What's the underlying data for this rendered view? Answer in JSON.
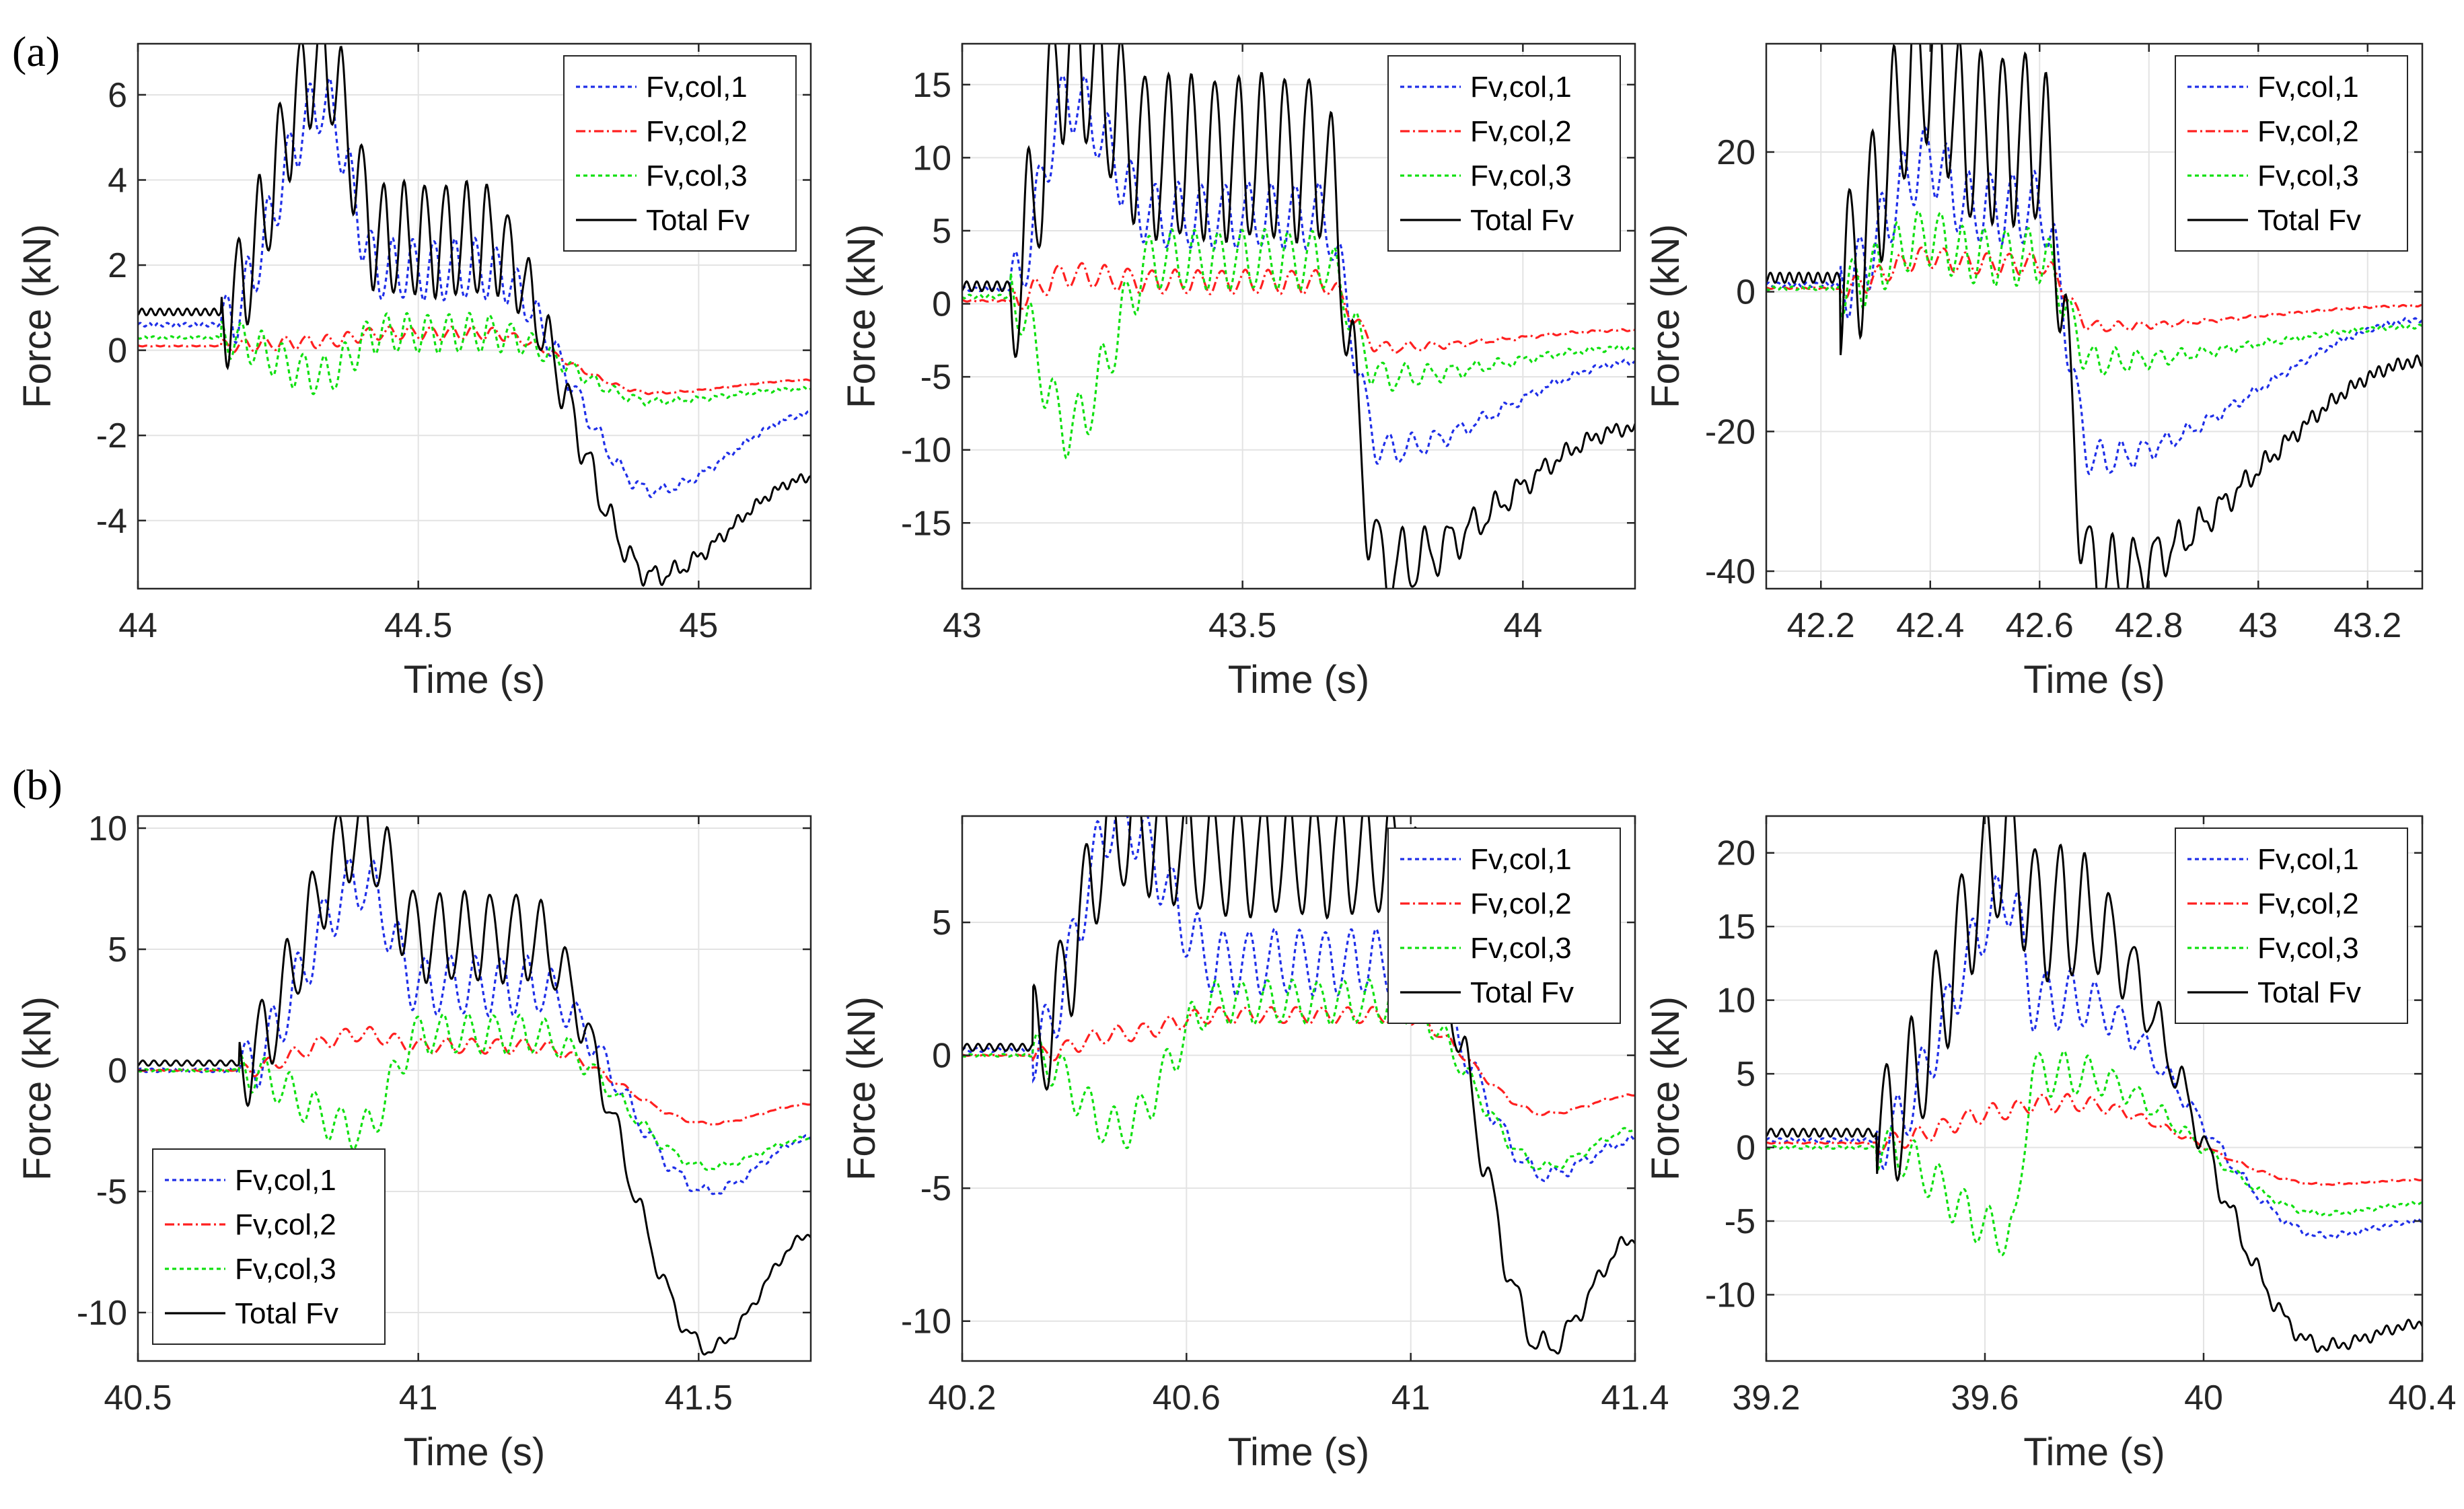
{
  "figure": {
    "row_labels": [
      "(a)",
      "(b)"
    ],
    "legend_entries": [
      "Fv,col,1",
      "Fv,col,2",
      "Fv,col,3",
      "Total Fv"
    ],
    "colors": {
      "col1": "#1f2fe8",
      "col2": "#ff2020",
      "col3": "#10e010",
      "total": "#000000"
    }
  },
  "chart_data": [
    {
      "type": "line",
      "row": "(a)",
      "title": "",
      "xlabel": "Time (s)",
      "ylabel": "Force (kN)",
      "xlim": [
        44,
        45.2
      ],
      "ylim": [
        -5.6,
        7.2
      ],
      "xticks": [
        44,
        44.5,
        45
      ],
      "xtick_labels": [
        "44",
        "44.5",
        "45"
      ],
      "yticks": [
        -4,
        -2,
        0,
        2,
        4,
        6
      ],
      "ytick_labels": [
        "-4",
        "-2",
        "0",
        "2",
        "4",
        "6"
      ],
      "legend_position": "top-right",
      "grid": true,
      "t_start": 44,
      "t_peak": 44.33,
      "t_drop": 44.62,
      "t_min": 44.92,
      "t_end": 45.2,
      "osc_freq": 27,
      "series": [
        {
          "name": "Fv,col,1",
          "style": "dotted",
          "v0": 0.6,
          "vpeak": 5.8,
          "vplat": 1.9,
          "vmin": -3.3,
          "vend": -1.5,
          "osc_amp": 0.7
        },
        {
          "name": "Fv,col,2",
          "style": "dashdot",
          "v0": 0.1,
          "vpeak": 0.2,
          "vplat": 0.4,
          "vmin": -1.0,
          "vend": -0.7,
          "osc_amp": 0.15
        },
        {
          "name": "Fv,col,3",
          "style": "dotted",
          "v0": 0.3,
          "vpeak": -0.6,
          "vplat": 0.4,
          "vmin": -1.2,
          "vend": -0.9,
          "osc_amp": 0.45
        },
        {
          "name": "Total Fv",
          "style": "solid",
          "v0": 0.9,
          "vpeak": 6.8,
          "vplat": 2.6,
          "vmin": -5.3,
          "vend": -3.0,
          "osc_amp": 1.3
        }
      ]
    },
    {
      "type": "line",
      "row": "(a)",
      "title": "",
      "xlabel": "Time (s)",
      "ylabel": "Force (kN)",
      "xlim": [
        43,
        44.2
      ],
      "ylim": [
        -19.5,
        17.8
      ],
      "xticks": [
        43,
        43.5,
        44
      ],
      "xtick_labels": [
        "43",
        "43.5",
        "44"
      ],
      "yticks": [
        -15,
        -10,
        -5,
        0,
        5,
        10,
        15
      ],
      "ytick_labels": [
        "-15",
        "-10",
        "-5",
        "0",
        "5",
        "10",
        "15"
      ],
      "legend_position": "top-right",
      "grid": true,
      "t_start": 43,
      "t_peak": 43.19,
      "t_drop": 43.64,
      "t_min": 43.75,
      "t_end": 44.2,
      "osc_freq": 24,
      "series": [
        {
          "name": "Fv,col,1",
          "style": "dotted",
          "v0": 1.0,
          "vpeak": 14.0,
          "vplat": 6.0,
          "vmin": -10.0,
          "vend": -4.0,
          "osc_amp": 2.2
        },
        {
          "name": "Fv,col,2",
          "style": "dashdot",
          "v0": 0.2,
          "vpeak": 2.0,
          "vplat": 1.5,
          "vmin": -3.0,
          "vend": -1.8,
          "osc_amp": 0.8
        },
        {
          "name": "Fv,col,3",
          "style": "dotted",
          "v0": 0.5,
          "vpeak": -8.5,
          "vplat": 3.0,
          "vmin": -5.0,
          "vend": -3.0,
          "osc_amp": 2.0
        },
        {
          "name": "Total Fv",
          "style": "solid",
          "v0": 1.2,
          "vpeak": 17.2,
          "vplat": 10.0,
          "vmin": -18.0,
          "vend": -8.5,
          "osc_amp": 5.5
        }
      ]
    },
    {
      "type": "line",
      "row": "(a)",
      "title": "",
      "xlabel": "Time (s)",
      "ylabel": "Force (kN)",
      "xlim": [
        42.1,
        43.3
      ],
      "ylim": [
        -42.5,
        35.5
      ],
      "xticks": [
        42.2,
        42.4,
        42.6,
        42.8,
        43,
        43.2
      ],
      "xtick_labels": [
        "42.2",
        "42.4",
        "42.6",
        "42.8",
        "43",
        "43.2"
      ],
      "yticks": [
        -40,
        -20,
        0,
        20
      ],
      "ytick_labels": [
        "-40",
        "-20",
        "0",
        "20"
      ],
      "legend_position": "top-right",
      "grid": true,
      "t_start": 42.1,
      "t_peak": 42.4,
      "t_drop": 42.6,
      "t_min": 42.7,
      "t_end": 43.3,
      "osc_freq": 25,
      "series": [
        {
          "name": "Fv,col,1",
          "style": "dotted",
          "v0": 1.0,
          "vpeak": 19.0,
          "vplat": 12.0,
          "vmin": -24.0,
          "vend": -4.0,
          "osc_amp": 5.0
        },
        {
          "name": "Fv,col,2",
          "style": "dashdot",
          "v0": 0.5,
          "vpeak": 5.0,
          "vplat": 4.0,
          "vmin": -5.0,
          "vend": -2.0,
          "osc_amp": 1.5
        },
        {
          "name": "Fv,col,3",
          "style": "dotted",
          "v0": 0.5,
          "vpeak": 8.0,
          "vplat": 5.0,
          "vmin": -10.0,
          "vend": -5.0,
          "osc_amp": 4.0
        },
        {
          "name": "Total Fv",
          "style": "solid",
          "v0": 2.0,
          "vpeak": 34.0,
          "vplat": 22.0,
          "vmin": -41.0,
          "vend": -10.0,
          "osc_amp": 12.0
        }
      ]
    },
    {
      "type": "line",
      "row": "(b)",
      "title": "",
      "xlabel": "Time (s)",
      "ylabel": "Force (kN)",
      "xlim": [
        40.5,
        41.7
      ],
      "ylim": [
        -12.0,
        10.5
      ],
      "xticks": [
        40.5,
        41,
        41.5
      ],
      "xtick_labels": [
        "40.5",
        "41",
        "41.5"
      ],
      "yticks": [
        -10,
        -5,
        0,
        5,
        10
      ],
      "ytick_labels": [
        "-10",
        "-5",
        "0",
        "5",
        "10"
      ],
      "legend_position": "bottom-left",
      "grid": true,
      "t_start": 40.5,
      "t_peak": 40.9,
      "t_drop": 41.2,
      "t_min": 41.52,
      "t_end": 41.7,
      "osc_freq": 22,
      "series": [
        {
          "name": "Fv,col,1",
          "style": "dotted",
          "v0": 0.0,
          "vpeak": 7.8,
          "vplat": 3.5,
          "vmin": -5.0,
          "vend": -2.8,
          "osc_amp": 1.2
        },
        {
          "name": "Fv,col,2",
          "style": "dashdot",
          "v0": 0.0,
          "vpeak": 1.5,
          "vplat": 1.0,
          "vmin": -2.2,
          "vend": -1.4,
          "osc_amp": 0.3
        },
        {
          "name": "Fv,col,3",
          "style": "dotted",
          "v0": 0.0,
          "vpeak": -2.5,
          "vplat": 1.5,
          "vmin": -4.0,
          "vend": -2.8,
          "osc_amp": 0.8
        },
        {
          "name": "Total Fv",
          "style": "solid",
          "v0": 0.3,
          "vpeak": 9.9,
          "vplat": 5.5,
          "vmin": -11.5,
          "vend": -6.8,
          "osc_amp": 1.8
        }
      ]
    },
    {
      "type": "line",
      "row": "(b)",
      "title": "",
      "xlabel": "Time (s)",
      "ylabel": "Force (kN)",
      "xlim": [
        40.2,
        41.4
      ],
      "ylim": [
        -11.5,
        9.0
      ],
      "xticks": [
        40.2,
        40.6,
        41,
        41.4
      ],
      "xtick_labels": [
        "40.2",
        "40.6",
        "41",
        "41.4"
      ],
      "yticks": [
        -10,
        -5,
        0,
        5
      ],
      "ytick_labels": [
        "-10",
        "-5",
        "0",
        "5"
      ],
      "legend_position": "top-right",
      "grid": true,
      "t_start": 40.2,
      "t_peak": 40.48,
      "t_drop": 40.98,
      "t_min": 41.24,
      "t_end": 41.4,
      "osc_freq": 22,
      "series": [
        {
          "name": "Fv,col,1",
          "style": "dotted",
          "v0": 0.2,
          "vpeak": 9.0,
          "vplat": 3.5,
          "vmin": -4.5,
          "vend": -3.2,
          "osc_amp": 1.2
        },
        {
          "name": "Fv,col,2",
          "style": "dashdot",
          "v0": 0.0,
          "vpeak": 0.8,
          "vplat": 1.5,
          "vmin": -2.2,
          "vend": -1.5,
          "osc_amp": 0.3
        },
        {
          "name": "Fv,col,3",
          "style": "dotted",
          "v0": 0.0,
          "vpeak": -2.8,
          "vplat": 2.0,
          "vmin": -4.2,
          "vend": -2.8,
          "osc_amp": 0.8
        },
        {
          "name": "Total Fv",
          "style": "solid",
          "v0": 0.3,
          "vpeak": 8.5,
          "vplat": 7.5,
          "vmin": -11.0,
          "vend": -6.9,
          "osc_amp": 2.2
        }
      ]
    },
    {
      "type": "line",
      "row": "(b)",
      "title": "",
      "xlabel": "Time (s)",
      "ylabel": "Force (kN)",
      "xlim": [
        39.2,
        40.4
      ],
      "ylim": [
        -14.5,
        22.5
      ],
      "xticks": [
        39.2,
        39.6,
        40,
        40.4
      ],
      "xtick_labels": [
        "39.2",
        "39.6",
        "40",
        "40.4"
      ],
      "yticks": [
        -10,
        -5,
        0,
        5,
        10,
        15,
        20
      ],
      "ytick_labels": [
        "-10",
        "-5",
        "0",
        "5",
        "10",
        "15",
        "20"
      ],
      "legend_position": "top-right",
      "grid": true,
      "t_start": 39.2,
      "t_peak": 39.65,
      "t_drop": 39.76,
      "t_min": 40.22,
      "t_end": 40.4,
      "osc_freq": 22,
      "series": [
        {
          "name": "Fv,col,1",
          "style": "dotted",
          "v0": 0.5,
          "vpeak": 17.0,
          "vplat": 10.0,
          "vmin": -6.0,
          "vend": -5.0,
          "osc_amp": 2.0
        },
        {
          "name": "Fv,col,2",
          "style": "dashdot",
          "v0": 0.3,
          "vpeak": 2.5,
          "vplat": 3.0,
          "vmin": -2.5,
          "vend": -2.2,
          "osc_amp": 0.6
        },
        {
          "name": "Fv,col,3",
          "style": "dotted",
          "v0": 0.0,
          "vpeak": -6.0,
          "vplat": 5.0,
          "vmin": -4.5,
          "vend": -3.8,
          "osc_amp": 1.5
        },
        {
          "name": "Total Fv",
          "style": "solid",
          "v0": 1.0,
          "vpeak": 20.5,
          "vplat": 16.0,
          "vmin": -13.5,
          "vend": -12.0,
          "osc_amp": 4.5
        }
      ]
    }
  ]
}
